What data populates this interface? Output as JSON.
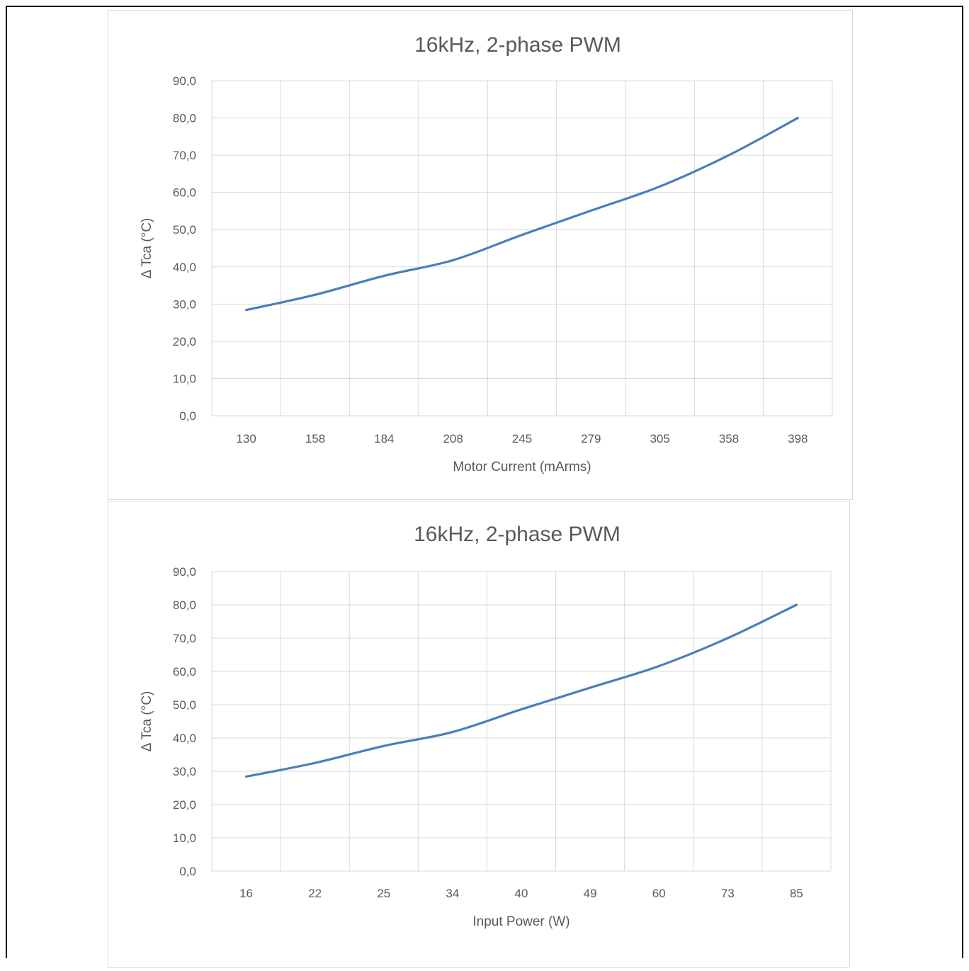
{
  "chart_data": [
    {
      "type": "line",
      "title": "16kHz, 2-phase PWM",
      "xlabel": "Motor Current (mArms)",
      "ylabel": "Δ Tca (°C)",
      "categories": [
        "130",
        "158",
        "184",
        "208",
        "245",
        "279",
        "305",
        "358",
        "398"
      ],
      "series": [
        {
          "values": [
            28.4,
            32.5,
            37.6,
            41.8,
            48.6,
            55.1,
            61.6,
            70.0,
            80.0
          ]
        }
      ],
      "ylim": [
        0,
        90
      ],
      "yticks": [
        "0,0",
        "10,0",
        "20,0",
        "30,0",
        "40,0",
        "50,0",
        "60,0",
        "70,0",
        "80,0",
        "90,0"
      ],
      "grid": true,
      "color": "#4a7ebb"
    },
    {
      "type": "line",
      "title": "16kHz, 2-phase PWM",
      "xlabel": "Input Power (W)",
      "ylabel": "Δ Tca (°C)",
      "categories": [
        "16",
        "22",
        "25",
        "34",
        "40",
        "49",
        "60",
        "73",
        "85"
      ],
      "series": [
        {
          "values": [
            28.4,
            32.5,
            37.6,
            41.8,
            48.6,
            55.1,
            61.6,
            70.0,
            80.0
          ]
        }
      ],
      "ylim": [
        0,
        90
      ],
      "yticks": [
        "0,0",
        "10,0",
        "20,0",
        "30,0",
        "40,0",
        "50,0",
        "60,0",
        "70,0",
        "80,0",
        "90,0"
      ],
      "grid": true,
      "color": "#4a7ebb"
    }
  ]
}
